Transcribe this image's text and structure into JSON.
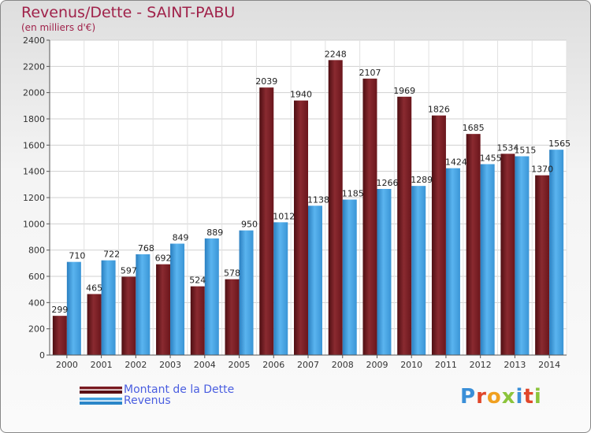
{
  "title": "Revenus/Dette - SAINT-PABU",
  "subtitle": "(en milliers d'€)",
  "legend": {
    "debt_label": "Montant de la Dette",
    "revenue_label": "Revenus"
  },
  "logo_text": "Proxiti",
  "colors": {
    "debt": "#7a1b22",
    "revenue": "#3f9fe0",
    "title": "#a0224a"
  },
  "chart_data": {
    "type": "bar",
    "categories": [
      "2000",
      "2001",
      "2002",
      "2003",
      "2004",
      "2005",
      "2006",
      "2007",
      "2008",
      "2009",
      "2010",
      "2011",
      "2012",
      "2013",
      "2014"
    ],
    "series": [
      {
        "name": "Montant de la Dette",
        "values": [
          299,
          465,
          597,
          692,
          524,
          578,
          2039,
          1940,
          2248,
          2107,
          1969,
          1826,
          1685,
          1534,
          1370
        ]
      },
      {
        "name": "Revenus",
        "values": [
          710,
          722,
          768,
          849,
          889,
          950,
          1012,
          1138,
          1185,
          1266,
          1289,
          1424,
          1455,
          1515,
          1565
        ]
      }
    ],
    "yticks": [
      0,
      200,
      400,
      600,
      800,
      1000,
      1200,
      1400,
      1600,
      1800,
      2000,
      2200,
      2400
    ],
    "ylim": [
      0,
      2400
    ],
    "grid": true,
    "xlabel": "",
    "ylabel": ""
  }
}
